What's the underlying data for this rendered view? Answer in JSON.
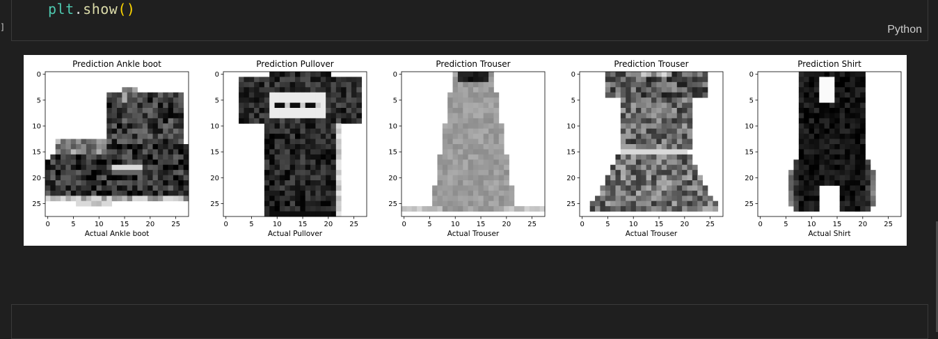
{
  "notebook": {
    "exec_marker": "]",
    "code_line": {
      "obj": "plt",
      "dot": ".",
      "fn": "show",
      "parens": "()"
    },
    "language": "Python"
  },
  "colors": {
    "background": "#1f1f1f",
    "cell_border": "#3a3a3a",
    "output_background": "#ffffff"
  },
  "chart_data": [
    {
      "type": "heatmap",
      "title": "Prediction Ankle boot",
      "xlabel": "Actual Ankle boot",
      "xlim": [
        -0.5,
        27.5
      ],
      "ylim": [
        27.5,
        -0.5
      ],
      "xticks": [
        0,
        5,
        10,
        15,
        20,
        25
      ],
      "yticks": [
        0,
        5,
        10,
        15,
        20,
        25
      ],
      "colormap": "gray_r",
      "image": "28x28 grayscale ankle boot"
    },
    {
      "type": "heatmap",
      "title": "Prediction Pullover",
      "xlabel": "Actual Pullover",
      "xlim": [
        -0.5,
        27.5
      ],
      "ylim": [
        27.5,
        -0.5
      ],
      "xticks": [
        0,
        5,
        10,
        15,
        20,
        25
      ],
      "yticks": [
        0,
        5,
        10,
        15,
        20,
        25
      ],
      "colormap": "gray_r",
      "image": "28x28 grayscale t-shirt"
    },
    {
      "type": "heatmap",
      "title": "Prediction Trouser",
      "xlabel": "Actual Trouser",
      "xlim": [
        -0.5,
        27.5
      ],
      "ylim": [
        27.5,
        -0.5
      ],
      "xticks": [
        0,
        5,
        10,
        15,
        20,
        25
      ],
      "yticks": [
        0,
        5,
        10,
        15,
        20,
        25
      ],
      "colormap": "gray_r",
      "image": "28x28 grayscale dress"
    },
    {
      "type": "heatmap",
      "title": "Prediction Trouser",
      "xlabel": "Actual Trouser",
      "xlim": [
        -0.5,
        27.5
      ],
      "ylim": [
        27.5,
        -0.5
      ],
      "xticks": [
        0,
        5,
        10,
        15,
        20,
        25
      ],
      "yticks": [
        0,
        5,
        10,
        15,
        20,
        25
      ],
      "colormap": "gray_r",
      "image": "28x28 grayscale dress"
    },
    {
      "type": "heatmap",
      "title": "Prediction Shirt",
      "xlabel": "Actual Shirt",
      "xlim": [
        -0.5,
        27.5
      ],
      "ylim": [
        27.5,
        -0.5
      ],
      "xticks": [
        0,
        5,
        10,
        15,
        20,
        25
      ],
      "yticks": [
        0,
        5,
        10,
        15,
        20,
        25
      ],
      "colormap": "gray_r",
      "image": "28x28 grayscale top"
    }
  ]
}
